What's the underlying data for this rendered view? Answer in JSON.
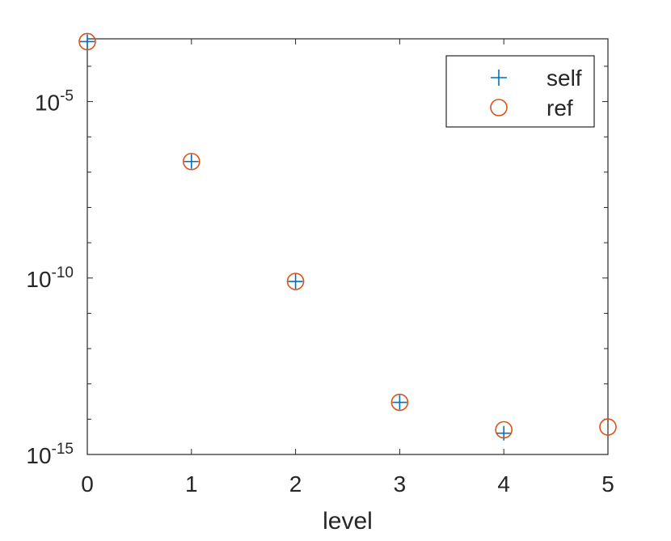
{
  "chart_data": {
    "type": "scatter",
    "title": "",
    "xlabel": "level",
    "ylabel": "",
    "xlim": [
      0,
      5
    ],
    "ylim": [
      1e-15,
      0.0006
    ],
    "yscale": "log",
    "grid": false,
    "legend_position": "top-right",
    "x_ticks": [
      0,
      1,
      2,
      3,
      4,
      5
    ],
    "x_tick_labels": [
      "0",
      "1",
      "2",
      "3",
      "4",
      "5"
    ],
    "y_ticks": [
      {
        "value": 1e-05,
        "base": "10",
        "exp": "-5"
      },
      {
        "value": 1e-10,
        "base": "10",
        "exp": "-10"
      },
      {
        "value": 1e-15,
        "base": "10",
        "exp": "-15"
      }
    ],
    "series": [
      {
        "name": "self",
        "marker": "plus",
        "color": "#0072BD",
        "x": [
          0,
          1,
          2,
          3,
          4
        ],
        "y": [
          0.0005,
          2e-07,
          8e-11,
          3e-14,
          4e-15
        ]
      },
      {
        "name": "ref",
        "marker": "circle",
        "color": "#D95319",
        "x": [
          0,
          1,
          2,
          3,
          4,
          5
        ],
        "y": [
          0.0005,
          2e-07,
          8e-11,
          3e-14,
          5e-15,
          6e-15
        ]
      }
    ]
  }
}
